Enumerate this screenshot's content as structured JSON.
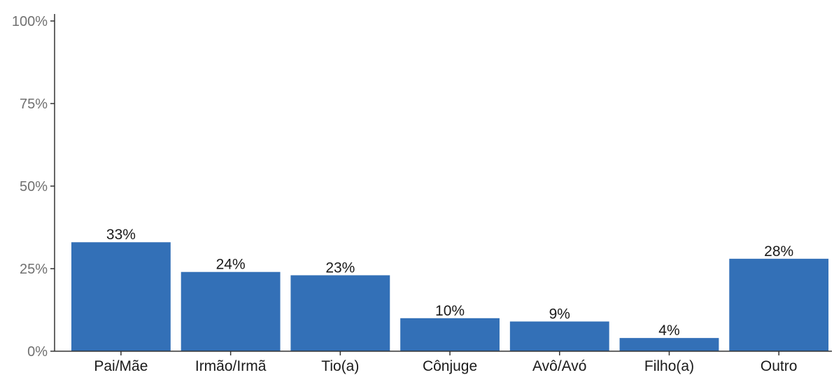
{
  "chart_data": {
    "type": "bar",
    "title": "",
    "xlabel": "",
    "ylabel": "",
    "ylim": [
      0,
      100
    ],
    "y_ticks": [
      "0%",
      "25%",
      "50%",
      "75%",
      "100%"
    ],
    "y_tick_values": [
      0,
      25,
      50,
      75,
      100
    ],
    "categories": [
      "Pai/Mãe",
      "Irmão/Irmã",
      "Tio(a)",
      "Cônjuge",
      "Avô/Avó",
      "Filho(a)",
      "Outro"
    ],
    "values": [
      33,
      24,
      23,
      10,
      9,
      4,
      28
    ],
    "data_labels": [
      "33%",
      "24%",
      "23%",
      "10%",
      "9%",
      "4%",
      "28%"
    ],
    "bar_color": "#3370b7",
    "grid": false,
    "legend": "none"
  }
}
